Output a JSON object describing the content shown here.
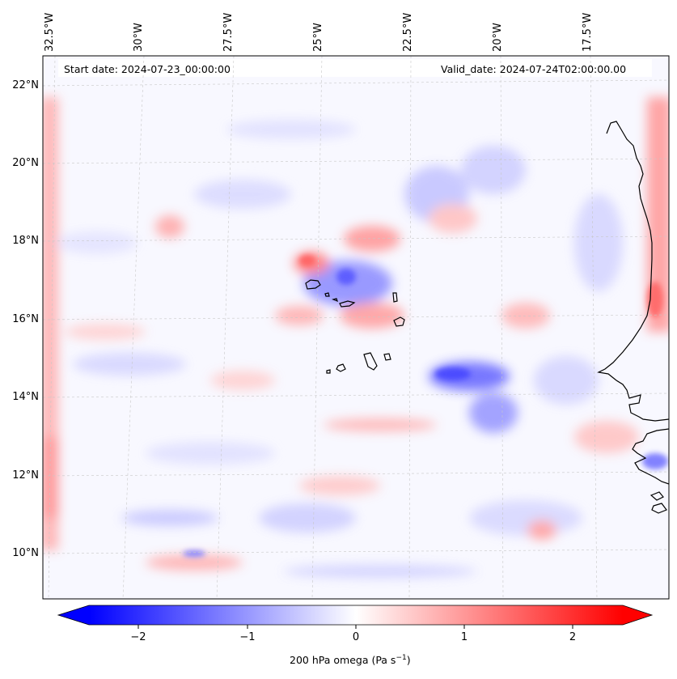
{
  "header": {
    "start_date": "Start date: 2024-07-23_00:00:00",
    "valid_date": "Valid_date: 2024-07-24T02:00:00.00"
  },
  "map": {
    "variable": "200 hPa omega",
    "units": "Pa s⁻¹",
    "region": "Cape Verde / West African coast",
    "lon_labels": [
      "32.5°W",
      "30°W",
      "27.5°W",
      "25°W",
      "22.5°W",
      "20°W",
      "17.5°W"
    ],
    "lat_labels": [
      "22°N",
      "20°N",
      "18°N",
      "16°N",
      "14°N",
      "12°N",
      "10°N"
    ],
    "gridlines": true
  },
  "colorbar": {
    "ticks": [
      "−2",
      "−1",
      "0",
      "1",
      "2"
    ],
    "range": [
      -2.6,
      2.6
    ],
    "colors": {
      "min": "#0000ff",
      "mid": "#ffffff",
      "max": "#ff0000"
    },
    "extend": "both",
    "label": "200 hPa omega (Pa s",
    "label_exp": "−1",
    "label_close": ")"
  }
}
